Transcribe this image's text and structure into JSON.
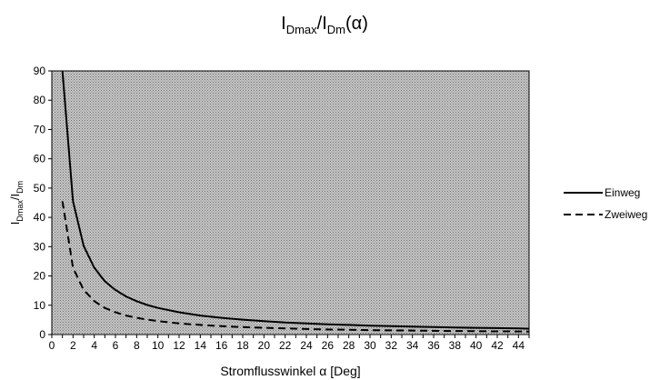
{
  "chart_data": {
    "type": "line",
    "title": "I_Dmax/I_Dm(α)",
    "title_parts": {
      "main1": "I",
      "sub1": "Dmax",
      "sep": "/",
      "main2": "I",
      "sub2": "Dm",
      "arg": "(α)"
    },
    "xlabel": "Stromflusswinkel α [Deg]",
    "ylabel_parts": {
      "main1": "I",
      "sub1": "Dmax",
      "sep": "/",
      "main2": "I",
      "sub2": "Dm"
    },
    "xlim": [
      0,
      45
    ],
    "ylim": [
      0,
      90
    ],
    "x_ticks": [
      0,
      2,
      4,
      6,
      8,
      10,
      12,
      14,
      16,
      18,
      20,
      22,
      24,
      26,
      28,
      30,
      32,
      34,
      36,
      38,
      40,
      42,
      44
    ],
    "y_ticks": [
      0,
      10,
      20,
      30,
      40,
      50,
      60,
      70,
      80,
      90
    ],
    "grid": false,
    "plot_background": "dotted gray",
    "legend_position": "right",
    "series": [
      {
        "name": "Einweg",
        "style": "solid",
        "x": [
          1,
          2,
          3,
          4,
          5,
          6,
          7,
          8,
          9,
          10,
          12,
          14,
          16,
          18,
          20,
          22,
          24,
          26,
          28,
          30,
          32,
          34,
          36,
          38,
          40,
          42,
          44,
          45
        ],
        "values": [
          91,
          45.5,
          30.3,
          22.8,
          18.2,
          15.2,
          13.0,
          11.4,
          10.1,
          9.1,
          7.6,
          6.5,
          5.7,
          5.1,
          4.6,
          4.1,
          3.8,
          3.5,
          3.3,
          3.0,
          2.85,
          2.7,
          2.55,
          2.4,
          2.3,
          2.2,
          2.1,
          2.0
        ]
      },
      {
        "name": "Zweiweg",
        "style": "dashed",
        "x": [
          1,
          2,
          3,
          4,
          5,
          6,
          7,
          8,
          9,
          10,
          12,
          14,
          16,
          18,
          20,
          22,
          24,
          26,
          28,
          30,
          32,
          34,
          36,
          38,
          40,
          42,
          44,
          45
        ],
        "values": [
          45.5,
          22.8,
          15.2,
          11.4,
          9.1,
          7.6,
          6.5,
          5.7,
          5.1,
          4.6,
          3.8,
          3.3,
          2.85,
          2.55,
          2.3,
          2.1,
          1.9,
          1.75,
          1.65,
          1.5,
          1.43,
          1.35,
          1.28,
          1.2,
          1.15,
          1.1,
          1.05,
          1.0
        ]
      }
    ]
  }
}
